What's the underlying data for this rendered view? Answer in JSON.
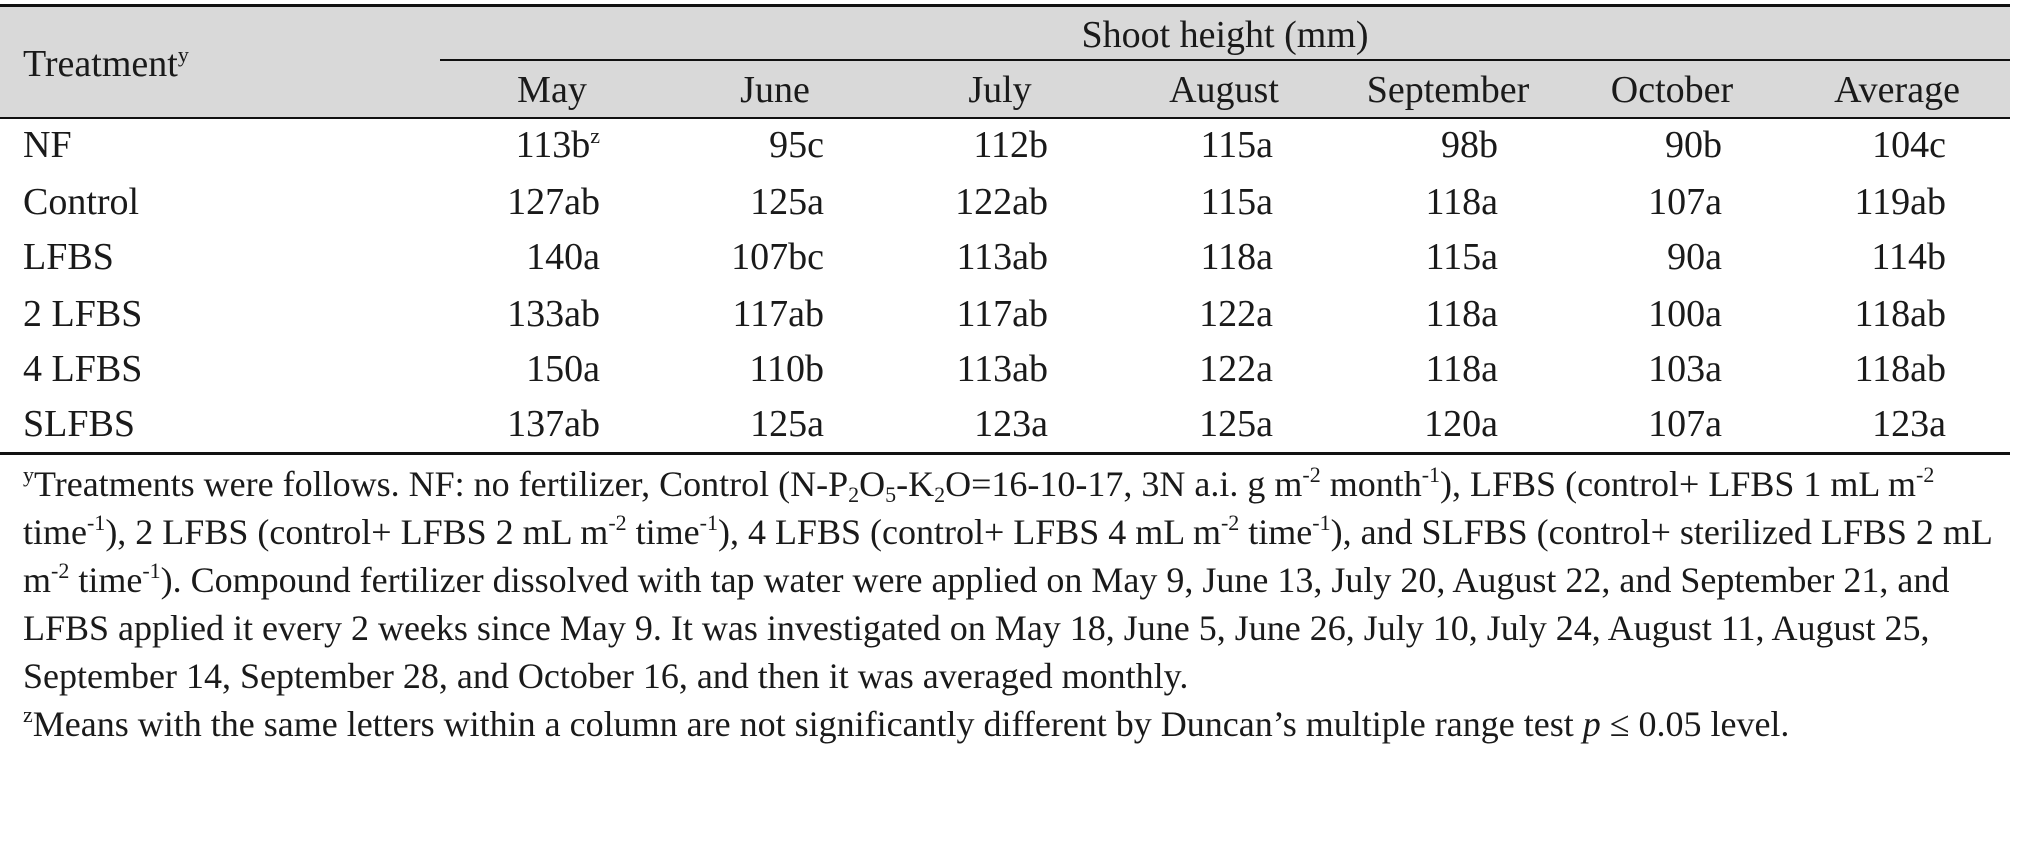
{
  "table": {
    "header": {
      "treatment": {
        "text": "Treatment",
        "sup": "y"
      },
      "group": "Shoot height (mm)",
      "columns": [
        "May",
        "June",
        "July",
        "August",
        "September",
        "October",
        "Average"
      ]
    },
    "rows": [
      {
        "label": "NF",
        "cells": [
          {
            "text": "113b",
            "sup": "z"
          },
          "95c",
          "112b",
          "115a",
          "98b",
          "90b",
          "104c"
        ]
      },
      {
        "label": "Control",
        "cells": [
          "127ab",
          "125a",
          "122ab",
          "115a",
          "118a",
          "107a",
          "119ab"
        ]
      },
      {
        "label": "LFBS",
        "cells": [
          "140a",
          "107bc",
          "113ab",
          "118a",
          "115a",
          "90a",
          "114b"
        ]
      },
      {
        "label": "2 LFBS",
        "cells": [
          "133ab",
          "117ab",
          "117ab",
          "122a",
          "118a",
          "100a",
          "118ab"
        ]
      },
      {
        "label": "4 LFBS",
        "cells": [
          "150a",
          "110b",
          "113ab",
          "122a",
          "118a",
          "103a",
          "118ab"
        ]
      },
      {
        "label": "SLFBS",
        "cells": [
          "137ab",
          "125a",
          "123a",
          "125a",
          "120a",
          "107a",
          "123a"
        ]
      }
    ]
  },
  "footnotes": [
    [
      {
        "sup": "y"
      },
      {
        "text": "Treatments were follows. NF: no fertilizer, Control (N-P"
      },
      {
        "sub": "2"
      },
      {
        "text": "O"
      },
      {
        "sub": "5"
      },
      {
        "text": "-K"
      },
      {
        "sub": "2"
      },
      {
        "text": "O=16-10-17, 3N a.i. g m"
      },
      {
        "sup": "-2"
      },
      {
        "text": " month"
      },
      {
        "sup": "-1"
      },
      {
        "text": "), LFBS (control+ LFBS 1 mL m"
      },
      {
        "sup": "-2"
      },
      {
        "text": " time"
      },
      {
        "sup": "-1"
      },
      {
        "text": "), 2 LFBS (control+ LFBS 2 mL m"
      },
      {
        "sup": "-2"
      },
      {
        "text": " time"
      },
      {
        "sup": "-1"
      },
      {
        "text": "), 4 LFBS (control+ LFBS 4 mL m"
      },
      {
        "sup": "-2"
      },
      {
        "text": " time"
      },
      {
        "sup": "-1"
      },
      {
        "text": "), and SLFBS (control+ sterilized LFBS 2 mL m"
      },
      {
        "sup": "-2"
      },
      {
        "text": " time"
      },
      {
        "sup": "-1"
      },
      {
        "text": "). Compound fertilizer dissolved with tap water were applied on May 9, June 13, July 20, August 22, and September 21, and LFBS applied it every 2 weeks since May 9. It was investigated on May 18, June 5, June 26, July 10, July 24, August 11, August 25, September 14, September 28, and October 16, and then it was averaged monthly."
      }
    ],
    [
      {
        "sup": "z"
      },
      {
        "text": "Means with the same letters within a column are not significantly different by Duncan’s multiple range test "
      },
      {
        "italic": "p"
      },
      {
        "text": " ≤ 0.05 level."
      }
    ]
  ]
}
